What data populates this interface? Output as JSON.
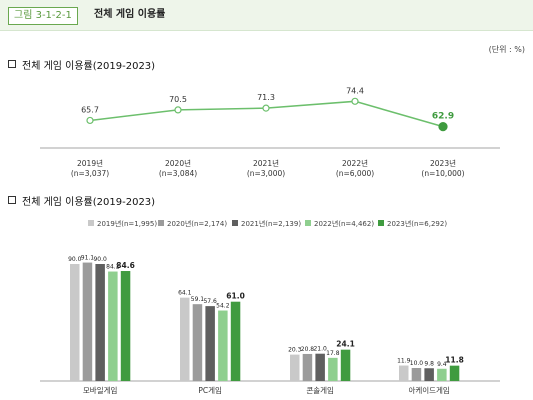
{
  "header": {
    "figure_tag": "그림 3-1-2-1",
    "figure_title": "전체 게임 이용률"
  },
  "unit_label": "(단위 : %)",
  "sections": [
    {
      "title": "전체 게임 이용률(2019-2023)"
    },
    {
      "title": "전체 게임 이용률(2019-2023)"
    }
  ],
  "colors": {
    "accent": "#3f9b3f",
    "line": "#6cbf6c",
    "header_bg": "#eef5ea"
  },
  "chart_data": [
    {
      "type": "line",
      "categories": [
        {
          "year": "2019년",
          "n": "(n=3,037)"
        },
        {
          "year": "2020년",
          "n": "(n=3,084)"
        },
        {
          "year": "2021년",
          "n": "(n=3,000)"
        },
        {
          "year": "2022년",
          "n": "(n=6,000)"
        },
        {
          "year": "2023년",
          "n": "(n=10,000)"
        }
      ],
      "values": [
        65.7,
        70.5,
        71.3,
        74.4,
        62.9
      ],
      "value_labels": [
        "65.7",
        "70.5",
        "71.3",
        "74.4",
        "62.9"
      ],
      "highlight_last": true,
      "ylim": [
        40,
        90
      ]
    },
    {
      "type": "bar",
      "legend_position": "top-right",
      "categories": [
        "모바일게임",
        "PC게임",
        "콘솔게임",
        "아케이드게임"
      ],
      "series": [
        {
          "name": "2019년(n=1,995)",
          "color": "#c9c9c9",
          "values": [
            90.0,
            64.1,
            20.3,
            11.9
          ],
          "labels": [
            "90.0",
            "64.1",
            "20.3",
            "11.9"
          ]
        },
        {
          "name": "2020년(n=2,174)",
          "color": "#9b9b9b",
          "values": [
            91.1,
            59.1,
            20.8,
            10.0
          ],
          "labels": [
            "91.1",
            "59.1",
            "20.8",
            "10.0"
          ]
        },
        {
          "name": "2021년(n=2,139)",
          "color": "#5f5f5f",
          "values": [
            90.0,
            57.6,
            21.0,
            9.8
          ],
          "labels": [
            "90.0",
            "57.6",
            "21.0",
            "9.8"
          ]
        },
        {
          "name": "2022년(n=4,462)",
          "color": "#8fcf8f",
          "values": [
            84.2,
            54.2,
            17.8,
            9.4
          ],
          "labels": [
            "84.2",
            "54.2",
            "17.8",
            "9.4"
          ]
        },
        {
          "name": "2023년(n=6,292)",
          "color": "#3f9b3f",
          "values": [
            84.6,
            61.0,
            24.1,
            11.8
          ],
          "labels": [
            "84.6",
            "61.0",
            "24.1",
            "11.8"
          ]
        }
      ],
      "ylim": [
        0,
        100
      ]
    }
  ]
}
